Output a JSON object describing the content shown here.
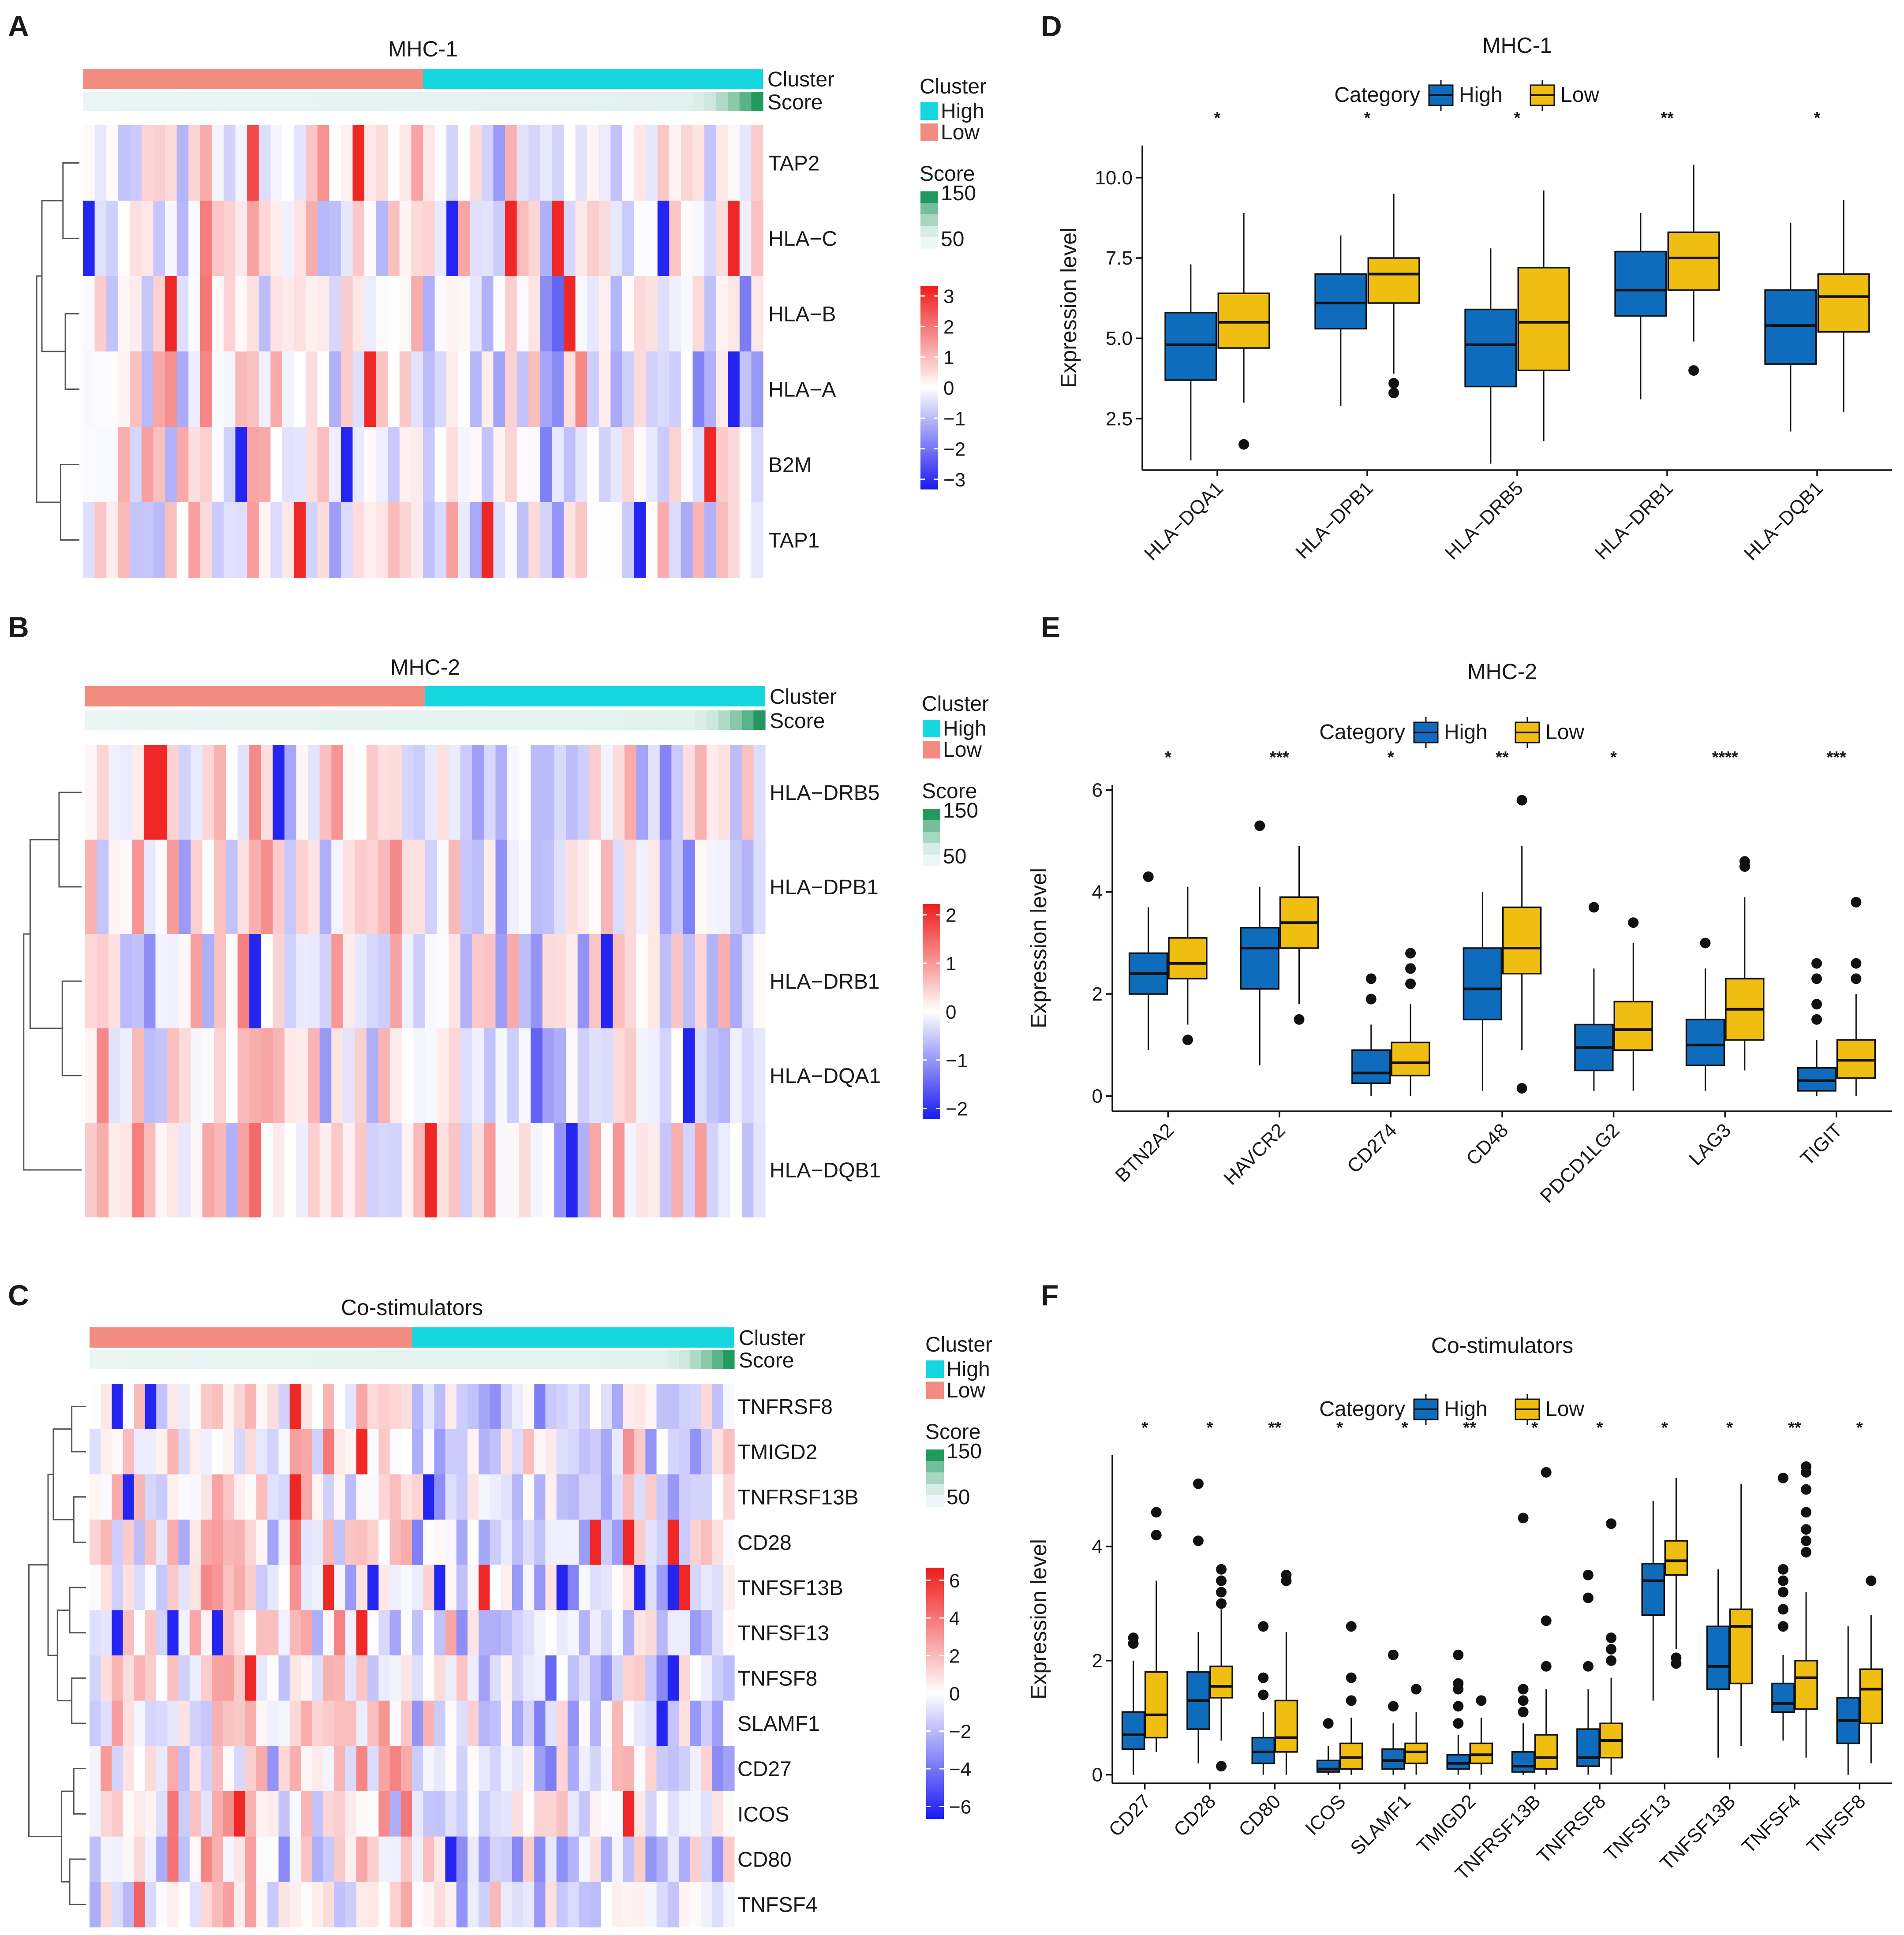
{
  "figure": {
    "colors": {
      "high": "#0f6cbd",
      "low": "#efbe10",
      "cluster_high": "#16d7df",
      "cluster_low": "#f28b80",
      "score_low": "#eef7f7",
      "score_high": "#239a5d",
      "heat_neg": "#1a1af0",
      "heat_mid": "#ffffff",
      "heat_pos": "#ee1c1c"
    }
  },
  "chart_data": [
    {
      "panel": "A",
      "type": "heatmap",
      "title": "MHC-1",
      "rows": [
        "TAP2",
        "HLA−C",
        "HLA−B",
        "HLA−A",
        "B2M",
        "TAP1"
      ],
      "annotation_labels": [
        "Cluster",
        "Score"
      ],
      "n_samples": 58,
      "n_low_cluster": 29,
      "scale_ticks": [
        "3",
        "2",
        "1",
        "0",
        "−1",
        "−2",
        "−3"
      ],
      "scale_range": [
        -3,
        3
      ],
      "legend": {
        "cluster_title": "Cluster",
        "cluster_items": [
          "High",
          "Low"
        ],
        "score_title": "Score",
        "score_ticks": [
          "150",
          "50"
        ]
      }
    },
    {
      "panel": "B",
      "type": "heatmap",
      "title": "MHC-2",
      "rows": [
        "HLA−DRB5",
        "HLA−DPB1",
        "HLA−DRB1",
        "HLA−DQA1",
        "HLA−DQB1"
      ],
      "annotation_labels": [
        "Cluster",
        "Score"
      ],
      "n_samples": 58,
      "n_low_cluster": 29,
      "scale_ticks": [
        "2",
        "1",
        "0",
        "−1",
        "−2"
      ],
      "scale_range": [
        -2.5,
        2.5
      ],
      "legend": {
        "cluster_title": "Cluster",
        "cluster_items": [
          "High",
          "Low"
        ],
        "score_title": "Score",
        "score_ticks": [
          "150",
          "50"
        ]
      }
    },
    {
      "panel": "C",
      "type": "heatmap",
      "title": "Co-stimulators",
      "rows": [
        "TNFRSF8",
        "TMIGD2",
        "TNFRSF13B",
        "CD28",
        "TNFSF13B",
        "TNFSF13",
        "TNFSF8",
        "SLAMF1",
        "CD27",
        "ICOS",
        "CD80",
        "TNFSF4"
      ],
      "annotation_labels": [
        "Cluster",
        "Score"
      ],
      "n_samples": 58,
      "n_low_cluster": 29,
      "scale_ticks": [
        "6",
        "4",
        "2",
        "0",
        "−2",
        "−4",
        "−6"
      ],
      "scale_range": [
        -6,
        6
      ],
      "legend": {
        "cluster_title": "Cluster",
        "cluster_items": [
          "High",
          "Low"
        ],
        "score_title": "Score",
        "score_ticks": [
          "150",
          "50"
        ]
      }
    },
    {
      "panel": "D",
      "type": "box",
      "title": "MHC-1",
      "legend_title": "Category",
      "legend_items": [
        "High",
        "Low"
      ],
      "ylabel": "Expression level",
      "ylim": [
        0.9,
        11.0
      ],
      "yticks": [
        "2.5",
        "5.0",
        "7.5",
        "10.0"
      ],
      "ytick_values": [
        2.5,
        5.0,
        7.5,
        10.0
      ],
      "categories": [
        "HLA−DQA1",
        "HLA−DPB1",
        "HLA−DRB5",
        "HLA−DRB1",
        "HLA−DQB1"
      ],
      "significance": [
        "*",
        "*",
        "*",
        "**",
        "*"
      ],
      "high": [
        {
          "min": 1.2,
          "q1": 3.7,
          "median": 4.8,
          "q3": 5.8,
          "max": 7.3,
          "outliers": []
        },
        {
          "min": 2.9,
          "q1": 5.3,
          "median": 6.1,
          "q3": 7.0,
          "max": 8.2,
          "outliers": []
        },
        {
          "min": 1.1,
          "q1": 3.5,
          "median": 4.8,
          "q3": 5.9,
          "max": 7.8,
          "outliers": []
        },
        {
          "min": 3.1,
          "q1": 5.7,
          "median": 6.5,
          "q3": 7.7,
          "max": 8.9,
          "outliers": []
        },
        {
          "min": 2.1,
          "q1": 4.2,
          "median": 5.4,
          "q3": 6.5,
          "max": 8.6,
          "outliers": []
        }
      ],
      "low": [
        {
          "min": 3.0,
          "q1": 4.7,
          "median": 5.5,
          "q3": 6.4,
          "max": 8.9,
          "outliers": [
            1.7
          ]
        },
        {
          "min": 3.9,
          "q1": 6.1,
          "median": 7.0,
          "q3": 7.5,
          "max": 9.5,
          "outliers": [
            3.6,
            3.3
          ]
        },
        {
          "min": 1.8,
          "q1": 4.0,
          "median": 5.5,
          "q3": 7.2,
          "max": 9.6,
          "outliers": []
        },
        {
          "min": 4.9,
          "q1": 6.5,
          "median": 7.5,
          "q3": 8.3,
          "max": 10.4,
          "outliers": [
            4.0
          ]
        },
        {
          "min": 2.7,
          "q1": 5.2,
          "median": 6.3,
          "q3": 7.0,
          "max": 9.3,
          "outliers": []
        }
      ]
    },
    {
      "panel": "E",
      "type": "box",
      "title": "MHC-2",
      "legend_title": "Category",
      "legend_items": [
        "High",
        "Low"
      ],
      "ylabel": "Expression level",
      "ylim": [
        -0.3,
        6.1
      ],
      "yticks": [
        "0",
        "2",
        "4",
        "6"
      ],
      "ytick_values": [
        0,
        2,
        4,
        6
      ],
      "categories": [
        "BTN2A2",
        "HAVCR2",
        "CD274",
        "CD48",
        "PDCD1LG2",
        "LAG3",
        "TIGIT"
      ],
      "significance": [
        "*",
        "***",
        "*",
        "**",
        "*",
        "****",
        "***"
      ],
      "high": [
        {
          "min": 0.9,
          "q1": 2.0,
          "median": 2.4,
          "q3": 2.8,
          "max": 3.7,
          "outliers": [
            4.3
          ]
        },
        {
          "min": 0.6,
          "q1": 2.1,
          "median": 2.9,
          "q3": 3.3,
          "max": 4.1,
          "outliers": [
            5.3
          ]
        },
        {
          "min": 0.0,
          "q1": 0.25,
          "median": 0.45,
          "q3": 0.9,
          "max": 1.4,
          "outliers": [
            1.9,
            2.3
          ]
        },
        {
          "min": 0.1,
          "q1": 1.5,
          "median": 2.1,
          "q3": 2.9,
          "max": 4.0,
          "outliers": []
        },
        {
          "min": 0.1,
          "q1": 0.5,
          "median": 0.95,
          "q3": 1.4,
          "max": 2.5,
          "outliers": [
            3.7
          ]
        },
        {
          "min": 0.1,
          "q1": 0.6,
          "median": 1.0,
          "q3": 1.5,
          "max": 2.5,
          "outliers": [
            3.0
          ]
        },
        {
          "min": 0.0,
          "q1": 0.1,
          "median": 0.3,
          "q3": 0.55,
          "max": 1.1,
          "outliers": [
            1.5,
            1.8,
            2.3,
            2.6
          ]
        }
      ],
      "low": [
        {
          "min": 1.4,
          "q1": 2.3,
          "median": 2.6,
          "q3": 3.1,
          "max": 4.1,
          "outliers": [
            1.1
          ]
        },
        {
          "min": 1.8,
          "q1": 2.9,
          "median": 3.4,
          "q3": 3.9,
          "max": 4.9,
          "outliers": [
            1.5
          ]
        },
        {
          "min": 0.0,
          "q1": 0.4,
          "median": 0.65,
          "q3": 1.05,
          "max": 1.8,
          "outliers": [
            2.2,
            2.5,
            2.8
          ]
        },
        {
          "min": 0.9,
          "q1": 2.4,
          "median": 2.9,
          "q3": 3.7,
          "max": 4.9,
          "outliers": [
            0.15,
            5.8
          ]
        },
        {
          "min": 0.1,
          "q1": 0.9,
          "median": 1.3,
          "q3": 1.85,
          "max": 3.0,
          "outliers": [
            3.4
          ]
        },
        {
          "min": 0.5,
          "q1": 1.1,
          "median": 1.7,
          "q3": 2.3,
          "max": 3.9,
          "outliers": [
            4.5,
            4.6
          ]
        },
        {
          "min": 0.0,
          "q1": 0.35,
          "median": 0.7,
          "q3": 1.1,
          "max": 2.0,
          "outliers": [
            2.3,
            2.6,
            3.8
          ]
        }
      ]
    },
    {
      "panel": "F",
      "type": "box",
      "title": "Co-stimulators",
      "legend_title": "Category",
      "legend_items": [
        "High",
        "Low"
      ],
      "ylabel": "Expression level",
      "ylim": [
        -0.15,
        5.6
      ],
      "yticks": [
        "0",
        "2",
        "4"
      ],
      "ytick_values": [
        0,
        2,
        4
      ],
      "categories": [
        "CD27",
        "CD28",
        "CD80",
        "ICOS",
        "SLAMF1",
        "TMIGD2",
        "TNFRSF13B",
        "TNFRSF8",
        "TNFSF13",
        "TNFSF13B",
        "TNFSF4",
        "TNFSF8"
      ],
      "significance": [
        "*",
        "*",
        "**",
        "*",
        "*",
        "**",
        "*",
        "*",
        "*",
        "*",
        "**",
        "*"
      ],
      "high": [
        {
          "min": 0.0,
          "q1": 0.45,
          "median": 0.7,
          "q3": 1.1,
          "max": 2.0,
          "outliers": [
            2.3,
            2.4
          ]
        },
        {
          "min": 0.2,
          "q1": 0.8,
          "median": 1.3,
          "q3": 1.8,
          "max": 2.5,
          "outliers": [
            4.1,
            5.1
          ]
        },
        {
          "min": 0.0,
          "q1": 0.2,
          "median": 0.4,
          "q3": 0.65,
          "max": 1.1,
          "outliers": [
            1.4,
            1.7,
            2.6
          ]
        },
        {
          "min": 0.0,
          "q1": 0.05,
          "median": 0.1,
          "q3": 0.25,
          "max": 0.5,
          "outliers": [
            0.9
          ]
        },
        {
          "min": 0.0,
          "q1": 0.1,
          "median": 0.25,
          "q3": 0.45,
          "max": 0.9,
          "outliers": [
            1.2,
            2.1
          ]
        },
        {
          "min": 0.0,
          "q1": 0.1,
          "median": 0.2,
          "q3": 0.35,
          "max": 0.7,
          "outliers": [
            0.9,
            1.2,
            1.5,
            1.6,
            2.1
          ]
        },
        {
          "min": 0.0,
          "q1": 0.05,
          "median": 0.15,
          "q3": 0.4,
          "max": 0.9,
          "outliers": [
            1.1,
            1.3,
            1.5,
            4.5
          ]
        },
        {
          "min": 0.0,
          "q1": 0.15,
          "median": 0.3,
          "q3": 0.8,
          "max": 1.5,
          "outliers": [
            1.9,
            3.1,
            3.5
          ]
        },
        {
          "min": 1.3,
          "q1": 2.8,
          "median": 3.4,
          "q3": 3.7,
          "max": 4.8,
          "outliers": []
        },
        {
          "min": 0.3,
          "q1": 1.5,
          "median": 1.9,
          "q3": 2.6,
          "max": 3.6,
          "outliers": []
        },
        {
          "min": 0.6,
          "q1": 1.1,
          "median": 1.25,
          "q3": 1.6,
          "max": 2.1,
          "outliers": [
            2.6,
            2.9,
            3.2,
            3.4,
            3.6,
            5.2
          ]
        },
        {
          "min": 0.0,
          "q1": 0.55,
          "median": 0.95,
          "q3": 1.35,
          "max": 2.6,
          "outliers": []
        }
      ],
      "low": [
        {
          "min": 0.4,
          "q1": 0.65,
          "median": 1.05,
          "q3": 1.8,
          "max": 3.4,
          "outliers": [
            4.2,
            4.6
          ]
        },
        {
          "min": 0.6,
          "q1": 1.35,
          "median": 1.55,
          "q3": 1.9,
          "max": 2.9,
          "outliers": [
            0.15,
            3.0,
            3.2,
            3.4,
            3.6
          ]
        },
        {
          "min": 0.0,
          "q1": 0.4,
          "median": 0.65,
          "q3": 1.3,
          "max": 2.5,
          "outliers": [
            3.4,
            3.5
          ]
        },
        {
          "min": 0.0,
          "q1": 0.1,
          "median": 0.3,
          "q3": 0.55,
          "max": 1.0,
          "outliers": [
            1.3,
            1.7,
            2.6
          ]
        },
        {
          "min": 0.0,
          "q1": 0.2,
          "median": 0.4,
          "q3": 0.55,
          "max": 1.1,
          "outliers": [
            1.5
          ]
        },
        {
          "min": 0.0,
          "q1": 0.2,
          "median": 0.35,
          "q3": 0.55,
          "max": 1.0,
          "outliers": [
            1.3
          ]
        },
        {
          "min": 0.0,
          "q1": 0.1,
          "median": 0.3,
          "q3": 0.7,
          "max": 1.5,
          "outliers": [
            1.9,
            2.7,
            5.3
          ]
        },
        {
          "min": 0.0,
          "q1": 0.3,
          "median": 0.6,
          "q3": 0.9,
          "max": 1.7,
          "outliers": [
            2.0,
            2.2,
            2.4,
            4.4
          ]
        },
        {
          "min": 2.2,
          "q1": 3.5,
          "median": 3.75,
          "q3": 4.1,
          "max": 5.2,
          "outliers": [
            1.95,
            2.05
          ]
        },
        {
          "min": 0.5,
          "q1": 1.6,
          "median": 2.6,
          "q3": 2.9,
          "max": 5.1,
          "outliers": []
        },
        {
          "min": 0.3,
          "q1": 1.15,
          "median": 1.7,
          "q3": 2.0,
          "max": 3.2,
          "outliers": [
            3.9,
            4.1,
            4.3,
            4.6,
            5.0,
            5.3,
            5.4
          ]
        },
        {
          "min": 0.2,
          "q1": 0.9,
          "median": 1.5,
          "q3": 1.85,
          "max": 2.8,
          "outliers": [
            3.4
          ]
        }
      ]
    }
  ]
}
